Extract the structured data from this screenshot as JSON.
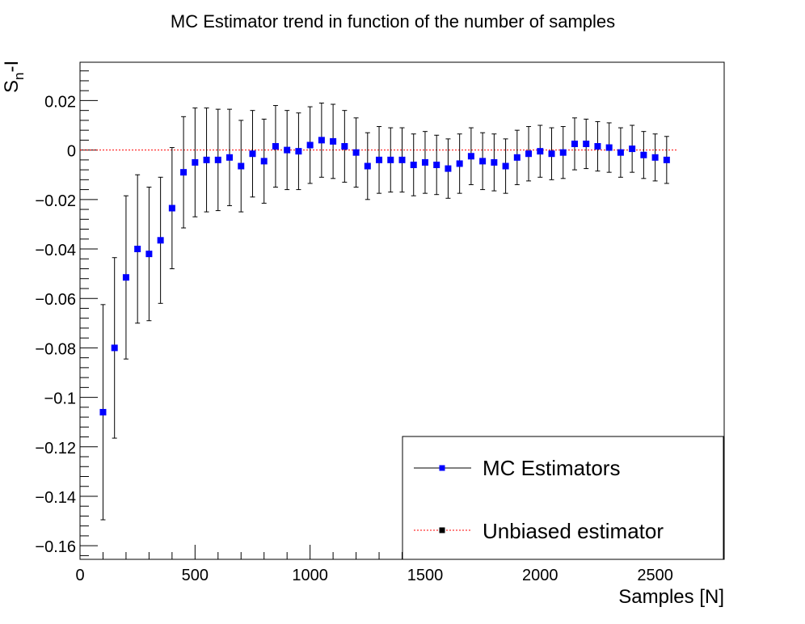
{
  "chart_data": {
    "type": "scatter",
    "title": "MC Estimator trend in function of the number of samples",
    "xlabel": "Samples [N]",
    "ylabel_main": "S",
    "ylabel_sub": "n",
    "ylabel_tail": "-I",
    "xlim": [
      0,
      2800
    ],
    "ylim": [
      -0.1655,
      0.0355
    ],
    "x_ticks": [
      {
        "value": 0,
        "label": "0"
      },
      {
        "value": 500,
        "label": "500"
      },
      {
        "value": 1000,
        "label": "1000"
      },
      {
        "value": 1500,
        "label": "1500"
      },
      {
        "value": 2000,
        "label": "2000"
      },
      {
        "value": 2500,
        "label": "2500"
      }
    ],
    "y_ticks": [
      {
        "value": 0.02,
        "label": "0.02"
      },
      {
        "value": 0,
        "label": "0"
      },
      {
        "value": -0.02,
        "label": "−0.02"
      },
      {
        "value": -0.04,
        "label": "−0.04"
      },
      {
        "value": -0.06,
        "label": "−0.06"
      },
      {
        "value": -0.08,
        "label": "−0.08"
      },
      {
        "value": -0.1,
        "label": "−0.1"
      },
      {
        "value": -0.12,
        "label": "−0.12"
      },
      {
        "value": -0.14,
        "label": "−0.14"
      },
      {
        "value": -0.16,
        "label": "−0.16"
      }
    ],
    "x_minor_step": 100,
    "y_minor_step": 0.004,
    "grid": false,
    "legend_position": "bottom-right",
    "series": [
      {
        "name": "MC Estimators",
        "color": "#0000ff",
        "marker": "square",
        "x": [
          100,
          150,
          200,
          250,
          300,
          350,
          400,
          450,
          500,
          550,
          600,
          650,
          700,
          750,
          800,
          850,
          900,
          950,
          1000,
          1050,
          1100,
          1150,
          1200,
          1250,
          1300,
          1350,
          1400,
          1450,
          1500,
          1550,
          1600,
          1650,
          1700,
          1750,
          1800,
          1850,
          1900,
          1950,
          2000,
          2050,
          2100,
          2150,
          2200,
          2250,
          2300,
          2350,
          2400,
          2450,
          2500,
          2550
        ],
        "y": [
          -0.106,
          -0.08,
          -0.0515,
          -0.04,
          -0.042,
          -0.0365,
          -0.0235,
          -0.009,
          -0.005,
          -0.004,
          -0.004,
          -0.003,
          -0.0065,
          -0.0015,
          -0.0045,
          0.0015,
          0.0,
          -0.0005,
          0.002,
          0.004,
          0.0035,
          0.0015,
          -0.001,
          -0.0065,
          -0.004,
          -0.004,
          -0.004,
          -0.006,
          -0.005,
          -0.006,
          -0.0075,
          -0.0055,
          -0.0025,
          -0.0045,
          -0.005,
          -0.0065,
          -0.003,
          -0.0015,
          -0.0005,
          -0.0015,
          -0.001,
          0.0025,
          0.0025,
          0.0015,
          0.001,
          -0.001,
          0.0005,
          -0.002,
          -0.003,
          -0.004
        ],
        "err": [
          0.0435,
          0.0365,
          0.033,
          0.03,
          0.027,
          0.0255,
          0.0245,
          0.0225,
          0.022,
          0.021,
          0.0205,
          0.0195,
          0.0185,
          0.0175,
          0.017,
          0.0165,
          0.016,
          0.0155,
          0.0155,
          0.015,
          0.015,
          0.0145,
          0.014,
          0.0135,
          0.0135,
          0.013,
          0.013,
          0.0125,
          0.0125,
          0.012,
          0.012,
          0.012,
          0.0115,
          0.0115,
          0.0115,
          0.011,
          0.011,
          0.011,
          0.0105,
          0.0105,
          0.0105,
          0.0105,
          0.01,
          0.01,
          0.01,
          0.01,
          0.0095,
          0.0095,
          0.0095,
          0.0095
        ]
      },
      {
        "name": "Unbiased estimator",
        "color": "#ff0000",
        "line_style": "dotted",
        "y_value": 0.0,
        "x_range": [
          0,
          2550
        ]
      }
    ]
  },
  "legend": {
    "items": [
      {
        "label": "MC Estimators"
      },
      {
        "label": "Unbiased estimator"
      }
    ]
  }
}
